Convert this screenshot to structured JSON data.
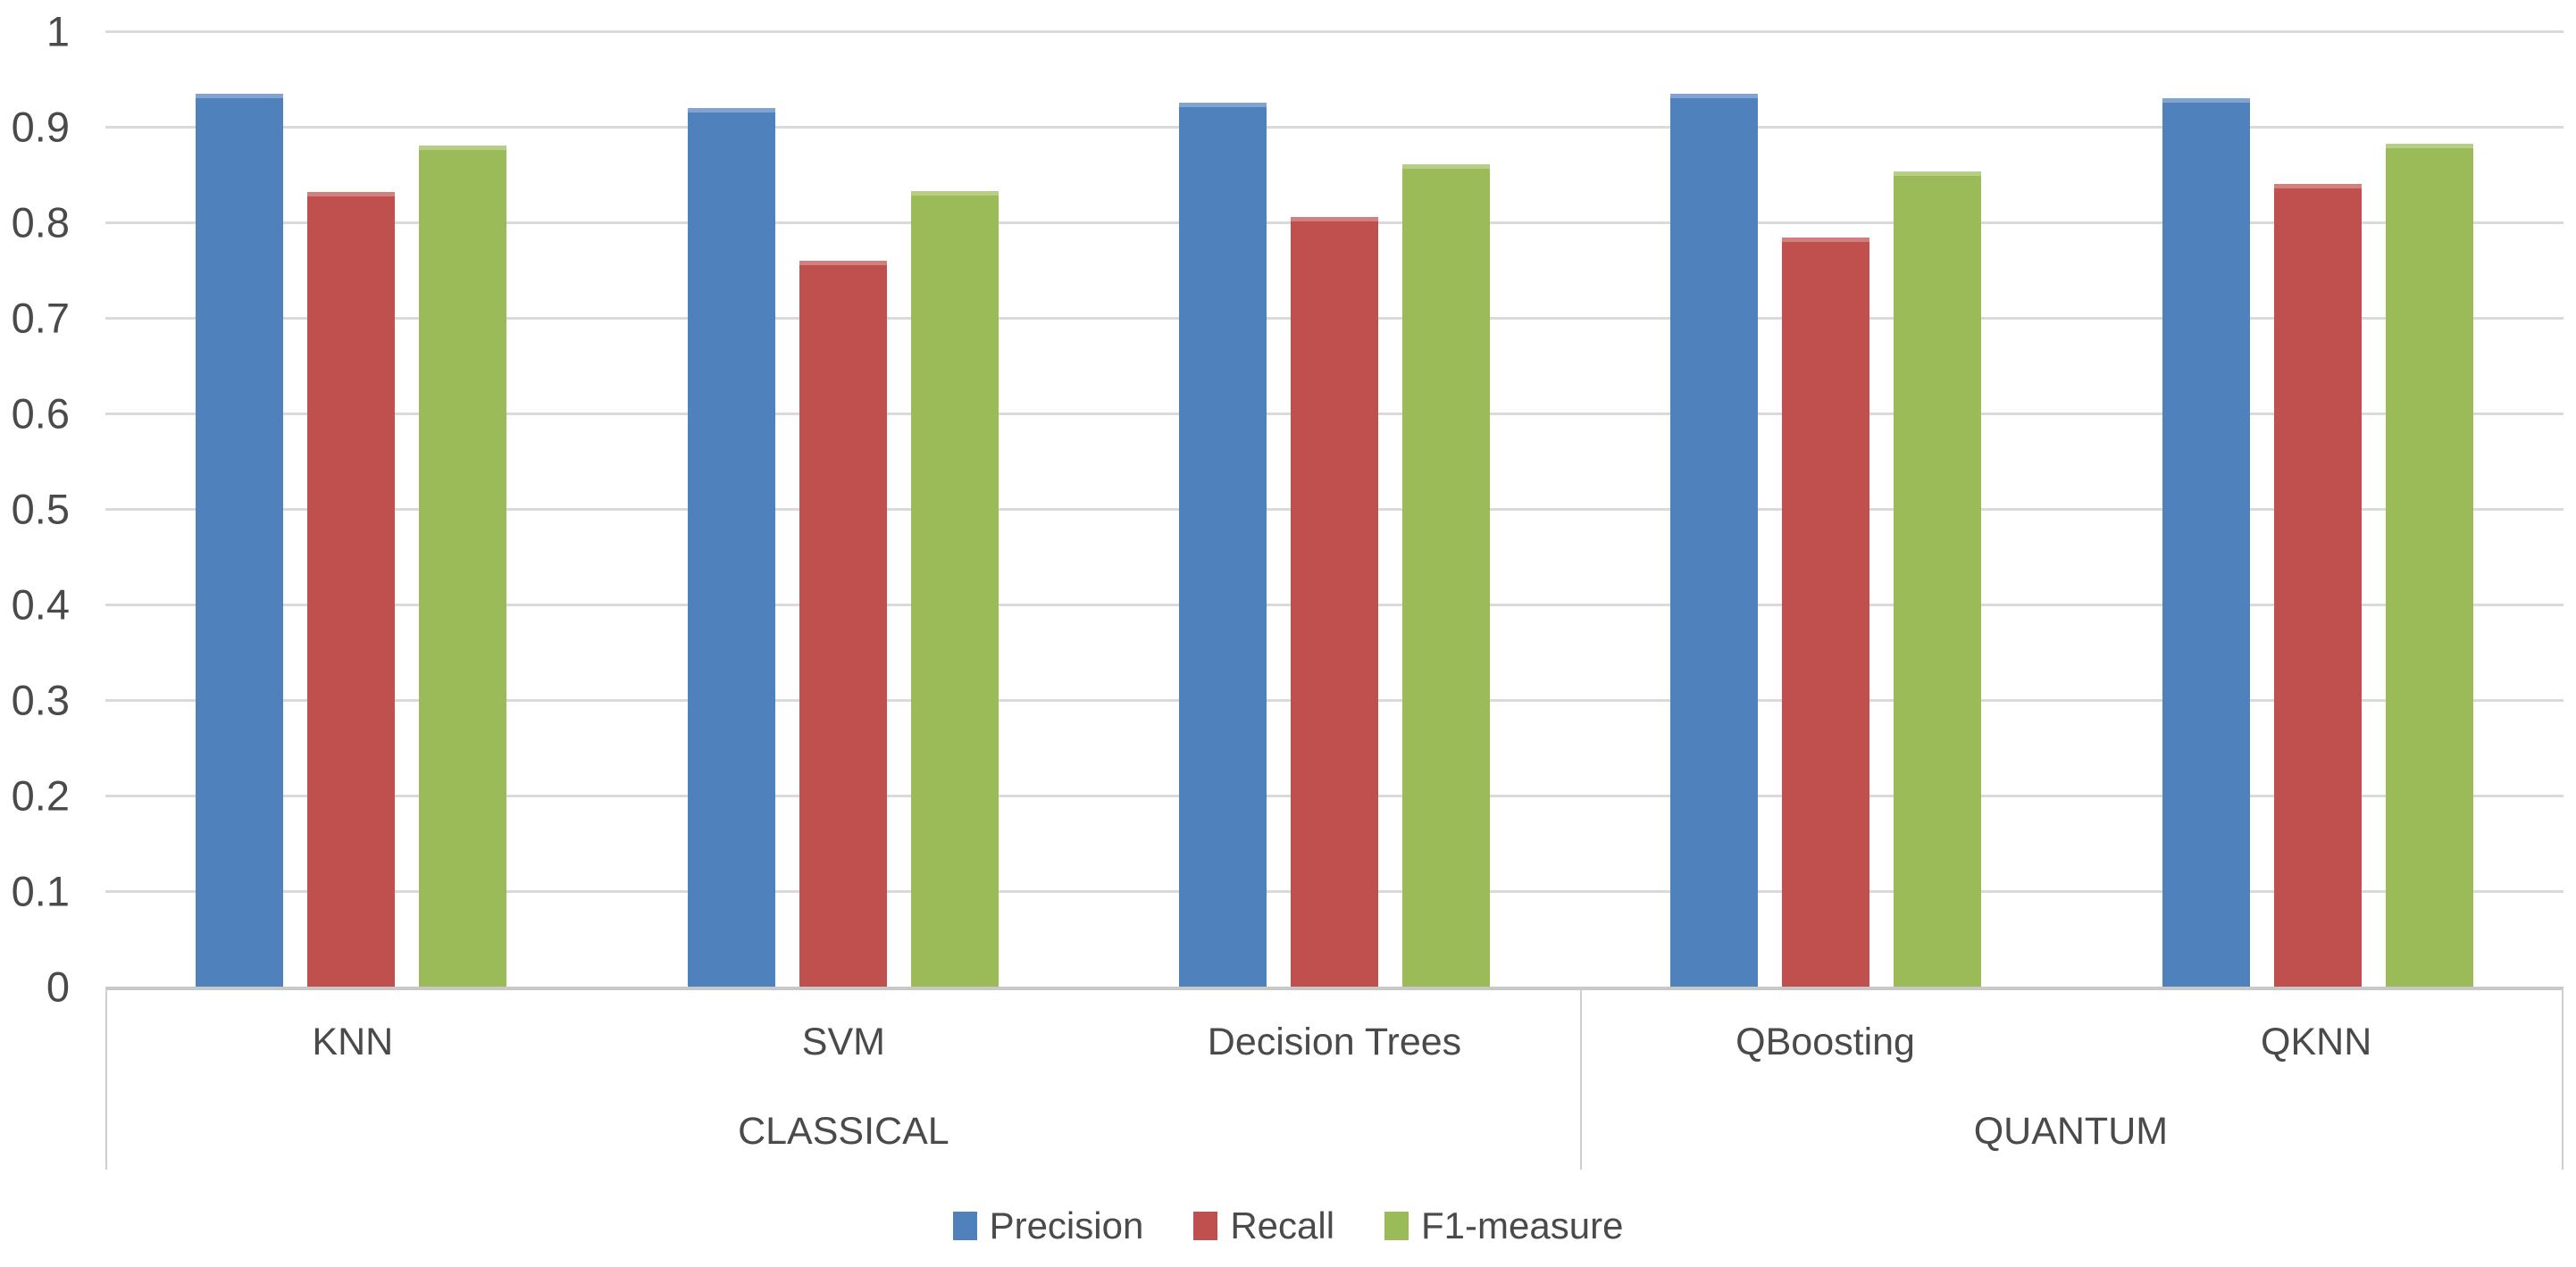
{
  "chart_data": {
    "type": "bar",
    "title": "",
    "xlabel": "",
    "ylabel": "",
    "categories": [
      "KNN",
      "SVM",
      "Decision Trees",
      "QBoosting",
      "QKNN"
    ],
    "category_groups": [
      {
        "label": "CLASSICAL",
        "span": 3
      },
      {
        "label": "QUANTUM",
        "span": 2
      }
    ],
    "series": [
      {
        "name": "Precision",
        "color": "#4F81BD",
        "values": [
          0.935,
          0.92,
          0.925,
          0.935,
          0.93
        ]
      },
      {
        "name": "Recall",
        "color": "#C0504D",
        "values": [
          0.832,
          0.76,
          0.806,
          0.784,
          0.84
        ]
      },
      {
        "name": "F1-measure",
        "color": "#9BBB59",
        "values": [
          0.88,
          0.833,
          0.861,
          0.853,
          0.882
        ]
      }
    ],
    "ylim": [
      0,
      1
    ],
    "ytick_labels": [
      "1",
      "0.9",
      "0.8",
      "0.7",
      "0.6",
      "0.5",
      "0.4",
      "0.3",
      "0.2",
      "0.1",
      "0"
    ],
    "grid": true,
    "legend_position": "bottom"
  },
  "colors": {
    "gridline": "#DADADA",
    "axis_line": "#C8C8C8",
    "category_border": "#CFCFCF",
    "text": "#4A4A4A",
    "background": "#FFFFFF"
  }
}
